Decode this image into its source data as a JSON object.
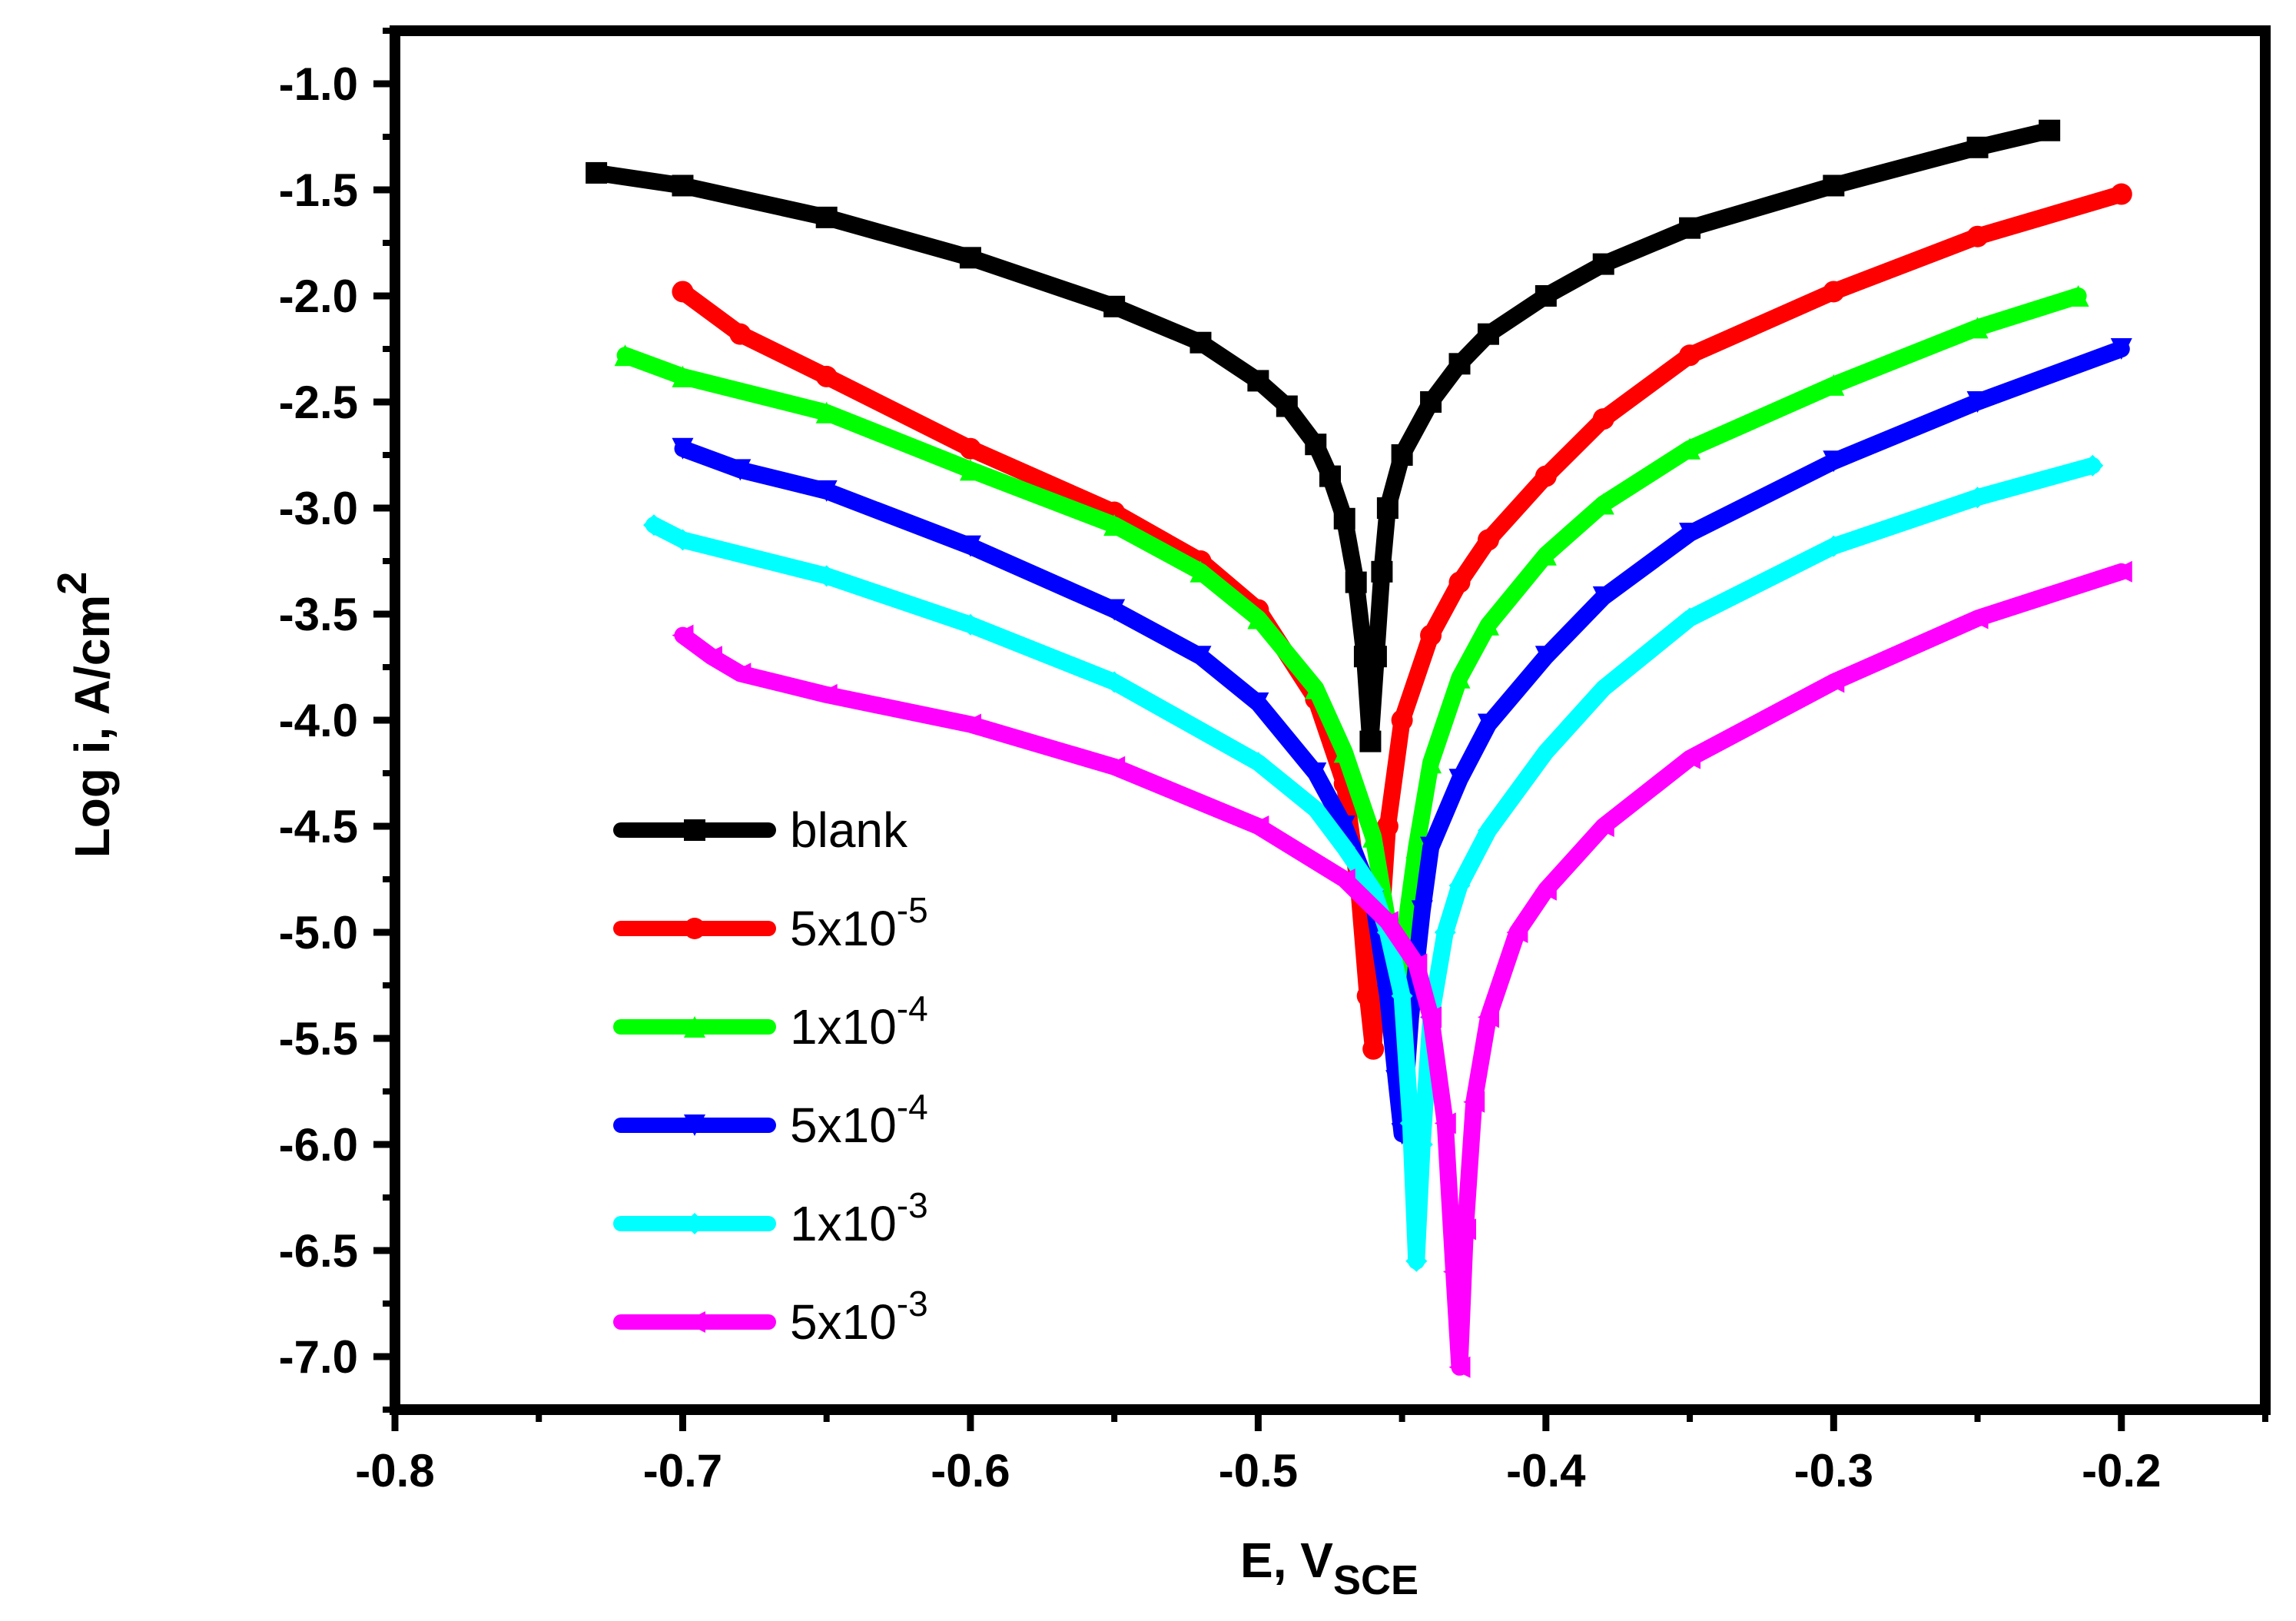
{
  "chart_data": {
    "type": "line",
    "title": "",
    "xlabel": "E, V",
    "xlabel_sub": "SCE",
    "ylabel": "Log i, A/cm",
    "ylabel_sup": "2",
    "xlim": [
      -0.8,
      -0.15
    ],
    "ylim": [
      -7.25,
      -0.75
    ],
    "x_ticks": [
      -0.8,
      -0.7,
      -0.6,
      -0.5,
      -0.4,
      -0.3,
      -0.2
    ],
    "x_tick_labels": [
      "-0.8",
      "-0.7",
      "-0.6",
      "-0.5",
      "-0.4",
      "-0.3",
      "-0.2"
    ],
    "y_ticks": [
      -1.0,
      -1.5,
      -2.0,
      -2.5,
      -3.0,
      -3.5,
      -4.0,
      -4.5,
      -5.0,
      -5.5,
      -6.0,
      -6.5,
      -7.0
    ],
    "y_tick_labels": [
      "-1.0",
      "-1.5",
      "-2.0",
      "-2.5",
      "-3.0",
      "-3.5",
      "-4.0",
      "-4.5",
      "-5.0",
      "-5.5",
      "-6.0",
      "-6.5",
      "-7.0"
    ],
    "legend_position": "bottom-left",
    "series": [
      {
        "name": "blank",
        "base": "blank",
        "exp": "",
        "color": "#000000",
        "marker": "square",
        "x": [
          -0.73,
          -0.7,
          -0.65,
          -0.6,
          -0.55,
          -0.52,
          -0.5,
          -0.49,
          -0.48,
          -0.475,
          -0.47,
          -0.466,
          -0.463,
          -0.461,
          -0.459,
          -0.457,
          -0.455,
          -0.45,
          -0.44,
          -0.43,
          -0.42,
          -0.4,
          -0.38,
          -0.35,
          -0.3,
          -0.25,
          -0.225
        ],
        "y": [
          -1.42,
          -1.48,
          -1.63,
          -1.82,
          -2.05,
          -2.22,
          -2.4,
          -2.52,
          -2.7,
          -2.85,
          -3.05,
          -3.35,
          -3.7,
          -4.1,
          -3.7,
          -3.3,
          -3.0,
          -2.75,
          -2.5,
          -2.32,
          -2.18,
          -2.0,
          -1.85,
          -1.68,
          -1.48,
          -1.3,
          -1.22
        ]
      },
      {
        "name": "5x10-5",
        "base": "5x10",
        "exp": "-5",
        "color": "#ff0000",
        "marker": "circle",
        "x": [
          -0.7,
          -0.68,
          -0.65,
          -0.6,
          -0.55,
          -0.52,
          -0.5,
          -0.48,
          -0.47,
          -0.465,
          -0.462,
          -0.46,
          -0.458,
          -0.455,
          -0.45,
          -0.44,
          -0.43,
          -0.42,
          -0.4,
          -0.38,
          -0.35,
          -0.3,
          -0.25,
          -0.2
        ],
        "y": [
          -1.98,
          -2.18,
          -2.38,
          -2.72,
          -3.02,
          -3.25,
          -3.48,
          -3.9,
          -4.3,
          -4.8,
          -5.3,
          -5.55,
          -5.1,
          -4.5,
          -4.0,
          -3.6,
          -3.35,
          -3.15,
          -2.85,
          -2.58,
          -2.28,
          -1.98,
          -1.72,
          -1.52
        ]
      },
      {
        "name": "1x10-4",
        "base": "1x10",
        "exp": "-4",
        "color": "#00ff00",
        "marker": "triangle-up",
        "x": [
          -0.72,
          -0.7,
          -0.65,
          -0.6,
          -0.55,
          -0.52,
          -0.5,
          -0.48,
          -0.47,
          -0.46,
          -0.455,
          -0.45,
          -0.448,
          -0.445,
          -0.44,
          -0.43,
          -0.42,
          -0.4,
          -0.38,
          -0.35,
          -0.3,
          -0.25,
          -0.215
        ],
        "y": [
          -2.28,
          -2.38,
          -2.55,
          -2.82,
          -3.08,
          -3.3,
          -3.52,
          -3.85,
          -4.15,
          -4.55,
          -4.95,
          -5.2,
          -4.9,
          -4.6,
          -4.2,
          -3.8,
          -3.55,
          -3.22,
          -2.98,
          -2.72,
          -2.42,
          -2.15,
          -2.0
        ]
      },
      {
        "name": "5x10-4",
        "base": "5x10",
        "exp": "-4",
        "color": "#0000ff",
        "marker": "triangle-down",
        "x": [
          -0.7,
          -0.68,
          -0.65,
          -0.6,
          -0.55,
          -0.52,
          -0.5,
          -0.48,
          -0.47,
          -0.46,
          -0.455,
          -0.452,
          -0.45,
          -0.447,
          -0.443,
          -0.44,
          -0.43,
          -0.42,
          -0.4,
          -0.38,
          -0.35,
          -0.3,
          -0.25,
          -0.2
        ],
        "y": [
          -2.72,
          -2.82,
          -2.92,
          -3.18,
          -3.48,
          -3.7,
          -3.92,
          -4.25,
          -4.5,
          -4.85,
          -5.3,
          -5.7,
          -5.95,
          -5.4,
          -4.9,
          -4.6,
          -4.28,
          -4.02,
          -3.7,
          -3.42,
          -3.12,
          -2.78,
          -2.5,
          -2.25
        ]
      },
      {
        "name": "1x10-3",
        "base": "1x10",
        "exp": "-3",
        "color": "#00ffff",
        "marker": "diamond",
        "x": [
          -0.71,
          -0.7,
          -0.65,
          -0.6,
          -0.55,
          -0.5,
          -0.48,
          -0.47,
          -0.46,
          -0.455,
          -0.45,
          -0.447,
          -0.445,
          -0.443,
          -0.44,
          -0.435,
          -0.43,
          -0.42,
          -0.4,
          -0.38,
          -0.35,
          -0.3,
          -0.25,
          -0.21
        ],
        "y": [
          -3.08,
          -3.15,
          -3.32,
          -3.55,
          -3.82,
          -4.2,
          -4.42,
          -4.6,
          -4.8,
          -5.0,
          -5.3,
          -5.9,
          -6.55,
          -6.0,
          -5.4,
          -5.0,
          -4.78,
          -4.52,
          -4.15,
          -3.85,
          -3.52,
          -3.18,
          -2.95,
          -2.8
        ]
      },
      {
        "name": "5x10-3",
        "base": "5x10",
        "exp": "-3",
        "color": "#ff00ff",
        "marker": "triangle-left",
        "x": [
          -0.7,
          -0.69,
          -0.68,
          -0.65,
          -0.6,
          -0.55,
          -0.5,
          -0.47,
          -0.455,
          -0.445,
          -0.44,
          -0.435,
          -0.432,
          -0.43,
          -0.428,
          -0.425,
          -0.42,
          -0.41,
          -0.4,
          -0.38,
          -0.35,
          -0.3,
          -0.25,
          -0.2
        ],
        "y": [
          -3.6,
          -3.7,
          -3.78,
          -3.88,
          -4.02,
          -4.22,
          -4.5,
          -4.75,
          -4.95,
          -5.15,
          -5.4,
          -5.9,
          -6.6,
          -7.05,
          -6.4,
          -5.8,
          -5.4,
          -5.0,
          -4.8,
          -4.5,
          -4.18,
          -3.82,
          -3.52,
          -3.3
        ]
      }
    ]
  }
}
